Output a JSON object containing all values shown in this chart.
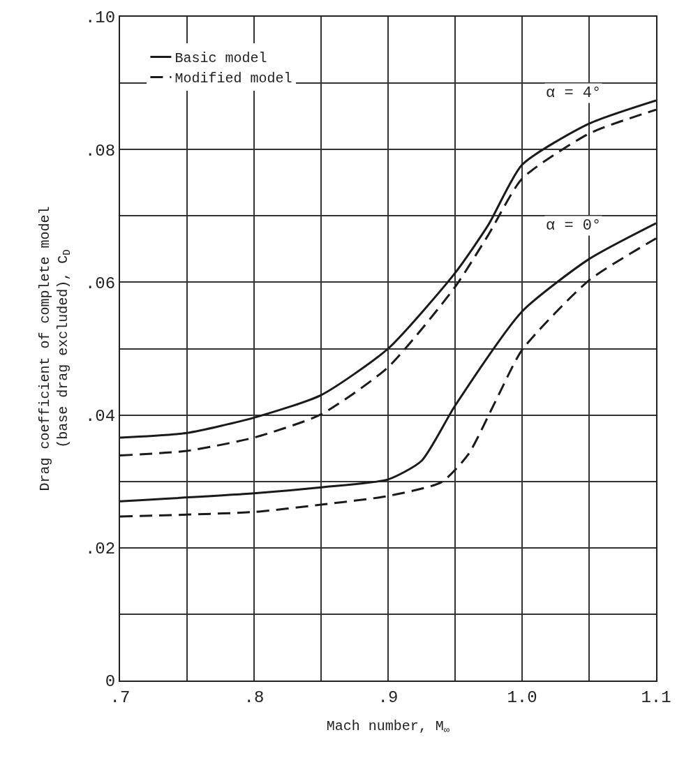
{
  "chart_data": {
    "type": "line",
    "xlabel": "Mach number, M$_{∞}$",
    "ylabel": "Drag coefficient of complete model\n(base drag excluded), C$_{D}$",
    "xlim": [
      0.7,
      1.1
    ],
    "ylim": [
      0,
      0.1
    ],
    "xticks": [
      {
        "value": 0.7,
        "label": ".7"
      },
      {
        "value": 0.75,
        "label": null
      },
      {
        "value": 0.8,
        "label": ".8"
      },
      {
        "value": 0.85,
        "label": null
      },
      {
        "value": 0.9,
        "label": ".9"
      },
      {
        "value": 0.95,
        "label": null
      },
      {
        "value": 1.0,
        "label": "1.0"
      },
      {
        "value": 1.05,
        "label": null
      },
      {
        "value": 1.1,
        "label": "1.1"
      }
    ],
    "yticks": [
      0,
      {
        "value": 0.01,
        "label": null
      },
      {
        "value": 0.02,
        "label": ".02"
      },
      {
        "value": 0.03,
        "label": null
      },
      {
        "value": 0.04,
        "label": ".04"
      },
      {
        "value": 0.05,
        "label": null
      },
      {
        "value": 0.06,
        "label": ".06"
      },
      {
        "value": 0.07,
        "label": null
      },
      {
        "value": 0.08,
        "label": ".08"
      },
      {
        "value": 0.09,
        "label": null
      },
      {
        "value": 0.1,
        "label": ".10"
      }
    ],
    "grid": true,
    "legend": "top left",
    "marker": "none",
    "series": [
      {
        "name": "Basic model",
        "color": "#1a1a1a",
        "line_style": "solid",
        "x": [
          0.7,
          0.75,
          0.8,
          0.85,
          0.9,
          0.95,
          0.975,
          1.0,
          1.05,
          1.1
        ],
        "values": [
          0.0366,
          0.0373,
          0.0396,
          0.043,
          0.05,
          0.0614,
          0.0687,
          0.0777,
          0.0839,
          0.0874
        ]
      },
      {
        "name": "Modified model",
        "color": "#1a1a1a",
        "line_style": "dashed",
        "x": [
          0.7,
          0.75,
          0.8,
          0.85,
          0.9,
          0.95,
          0.975,
          1.0,
          1.05,
          1.1
        ],
        "values": [
          0.0339,
          0.0346,
          0.0366,
          0.0401,
          0.0472,
          0.0593,
          0.0672,
          0.0756,
          0.0824,
          0.086
        ]
      },
      {
        "color": "#1a1a1a",
        "line_style": "solid",
        "x": [
          0.7,
          0.8,
          0.85,
          0.9,
          0.925,
          0.95,
          1.0,
          1.05,
          1.1
        ],
        "values": [
          0.027,
          0.0282,
          0.0291,
          0.0303,
          0.0331,
          0.0414,
          0.0556,
          0.0635,
          0.0689
        ]
      },
      {
        "color": "#1a1a1a",
        "line_style": "dashed",
        "x": [
          0.7,
          0.8,
          0.85,
          0.9,
          0.94,
          0.96,
          0.98,
          1.0,
          1.05,
          1.1
        ],
        "values": [
          0.0247,
          0.0254,
          0.0265,
          0.0278,
          0.0299,
          0.0341,
          0.042,
          0.0498,
          0.0603,
          0.0666
        ]
      }
    ],
    "annotations": [
      "α = 4°",
      "α = 0°"
    ]
  }
}
